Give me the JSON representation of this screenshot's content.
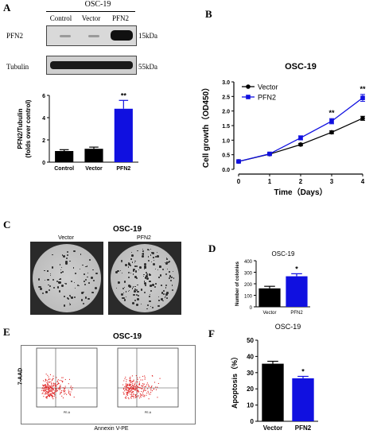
{
  "panel_letters": {
    "a": "A",
    "b": "B",
    "c": "C",
    "d": "D",
    "e": "E",
    "f": "F"
  },
  "panel_a": {
    "title": "OSC-19",
    "lanes": [
      "Control",
      "Vector",
      "PFN2"
    ],
    "rows": [
      {
        "name": "PFN2",
        "size": "15kDa"
      },
      {
        "name": "Tubulin",
        "size": "55kDa"
      }
    ]
  },
  "panel_e": {
    "title": "OSC-19",
    "xlabel": "Annexin V-PE",
    "ylabel": "7-AAD"
  },
  "panel_c": {
    "title": "OSC-19",
    "dish_labels": [
      "Vector",
      "PFN2"
    ]
  },
  "colors": {
    "vector": "#000000",
    "pfn2": "#1010e0",
    "flow_dots": "#e02020"
  },
  "chart_data": [
    {
      "panel": "A",
      "type": "bar",
      "categories": [
        "Control",
        "Vector",
        "PFN2"
      ],
      "values": [
        1.0,
        1.2,
        4.8
      ],
      "errors": [
        0.12,
        0.15,
        0.75
      ],
      "bar_colors": [
        "#000000",
        "#000000",
        "#1010e0"
      ],
      "ylabel": "PFN2/Tubulin\n(folds over control)",
      "ylim": [
        0,
        6
      ],
      "yticks": [
        0,
        2,
        4,
        6
      ],
      "annotations": [
        {
          "category": "PFN2",
          "text": "**"
        }
      ]
    },
    {
      "panel": "B",
      "type": "line",
      "title": "OSC-19",
      "xlabel": "Time（Days）",
      "ylabel": "Cell growth（OD450）",
      "x": [
        0,
        1,
        2,
        3,
        4
      ],
      "xlim": [
        0,
        4
      ],
      "ylim": [
        0.0,
        3.0
      ],
      "yticks": [
        0.0,
        0.5,
        1.0,
        1.5,
        2.0,
        2.5,
        3.0
      ],
      "legend": "top-left",
      "series": [
        {
          "name": "Vector",
          "values": [
            0.27,
            0.52,
            0.85,
            1.27,
            1.75
          ],
          "errors": [
            0.03,
            0.03,
            0.04,
            0.05,
            0.07
          ],
          "color": "#000000",
          "marker": "circle"
        },
        {
          "name": "PFN2",
          "values": [
            0.27,
            0.53,
            1.08,
            1.65,
            2.45
          ],
          "errors": [
            0.03,
            0.04,
            0.07,
            0.09,
            0.12
          ],
          "color": "#1010e0",
          "marker": "square"
        }
      ],
      "annotations": [
        {
          "x": 3,
          "text": "**"
        },
        {
          "x": 4,
          "text": "**"
        }
      ]
    },
    {
      "panel": "D",
      "type": "bar",
      "title": "OSC-19",
      "categories": [
        "Vector",
        "PFN2"
      ],
      "values": [
        160,
        265
      ],
      "errors": [
        18,
        22
      ],
      "bar_colors": [
        "#000000",
        "#1010e0"
      ],
      "ylabel": "Number of colonies",
      "ylim": [
        0,
        400
      ],
      "yticks": [
        0,
        100,
        200,
        300,
        400
      ],
      "annotations": [
        {
          "category": "PFN2",
          "text": "*"
        }
      ]
    },
    {
      "panel": "F",
      "type": "bar",
      "title": "OSC-19",
      "categories": [
        "Vector",
        "PFN2"
      ],
      "values": [
        35.5,
        26.5
      ],
      "errors": [
        1.5,
        1.2
      ],
      "bar_colors": [
        "#000000",
        "#1010e0"
      ],
      "ylabel": "Apoptosis（%）",
      "ylim": [
        0,
        50
      ],
      "yticks": [
        0,
        10,
        20,
        30,
        40,
        50
      ],
      "annotations": [
        {
          "category": "PFN2",
          "text": "*"
        }
      ]
    }
  ]
}
